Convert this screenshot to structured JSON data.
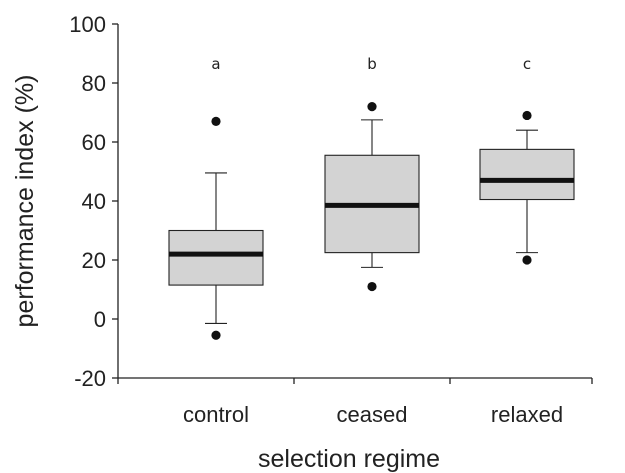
{
  "chart_data": {
    "type": "box",
    "title": "",
    "xlabel": "selection regime",
    "ylabel": "performance index (%)",
    "ylim": [
      -20,
      100
    ],
    "yticks": [
      -20,
      0,
      20,
      40,
      60,
      80,
      100
    ],
    "ytick_labels": [
      "-20",
      "0",
      "20",
      "40",
      "60",
      "80",
      "100"
    ],
    "grid": false,
    "legend": "none",
    "box_fill": "#d3d3d3",
    "categories": [
      "control",
      "ceased",
      "relaxed"
    ],
    "significance_letters": [
      "a",
      "b",
      "c"
    ],
    "boxes": [
      {
        "category": "control",
        "whisker_low": -1.5,
        "q1": 11.5,
        "median": 22,
        "q3": 30,
        "whisker_high": 49.5,
        "outliers": [
          -5.5,
          67
        ]
      },
      {
        "category": "ceased",
        "whisker_low": 17.5,
        "q1": 22.5,
        "median": 38.5,
        "q3": 55.5,
        "whisker_high": 67.5,
        "outliers": [
          11,
          72
        ]
      },
      {
        "category": "relaxed",
        "whisker_low": 22.5,
        "q1": 40.5,
        "median": 47,
        "q3": 57.5,
        "whisker_high": 64,
        "outliers": [
          20,
          69
        ]
      }
    ]
  }
}
